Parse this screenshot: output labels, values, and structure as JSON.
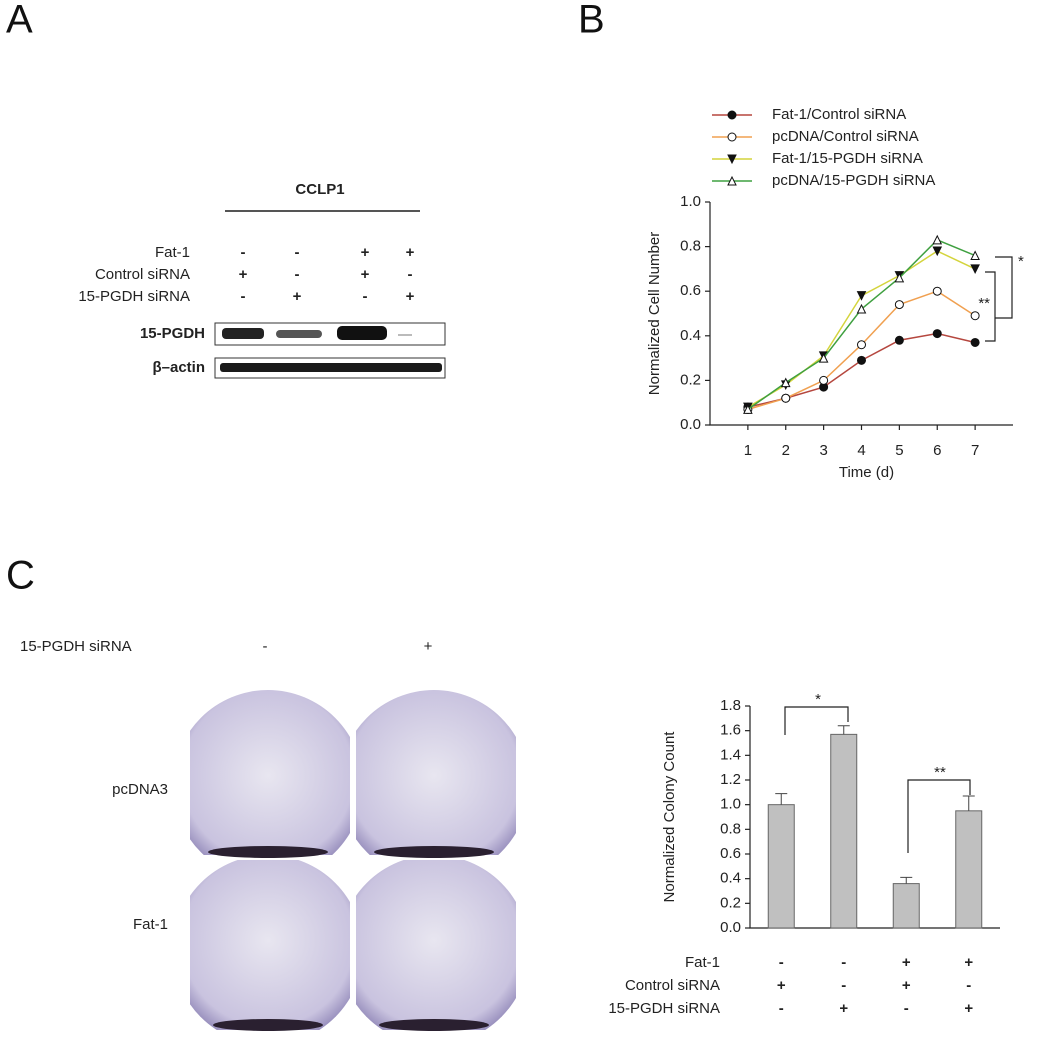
{
  "panels": {
    "a": "A",
    "b": "B",
    "c": "C"
  },
  "blot": {
    "title": "CCLP1",
    "conditions": [
      {
        "label": "Fat-1",
        "signs": [
          "-",
          "-",
          "+",
          "+"
        ]
      },
      {
        "label": "Control siRNA",
        "signs": [
          "+",
          "-",
          "+",
          "-"
        ]
      },
      {
        "label": "15-PGDH siRNA",
        "signs": [
          "-",
          "+",
          "-",
          "+"
        ]
      }
    ],
    "bands": [
      "15-PGDH",
      "β–actin"
    ]
  },
  "plates": {
    "header": "15-PGDH siRNA",
    "columns": [
      "-",
      "+"
    ],
    "rows": [
      "pcDNA3",
      "Fat-1"
    ]
  },
  "chart_data": [
    {
      "type": "line",
      "xlabel": "Time (d)",
      "ylabel": "Normalized Cell Number",
      "x": [
        1,
        2,
        3,
        4,
        5,
        6,
        7
      ],
      "xlim": [
        0,
        8
      ],
      "xticks": [
        1,
        2,
        3,
        4,
        5,
        6,
        7
      ],
      "ylim": [
        0,
        1
      ],
      "yticks": [
        {
          "value": 0,
          "label": "0.0"
        },
        0.2,
        0.4,
        0.6,
        0.8,
        {
          "value": 1,
          "label": "1.0"
        }
      ],
      "series": [
        {
          "name": "Fat-1/Control siRNA",
          "color": "#b5473f",
          "marker": "circle-filled",
          "values": [
            0.08,
            0.12,
            0.17,
            0.29,
            0.38,
            0.41,
            0.37
          ]
        },
        {
          "name": "pcDNA/Control siRNA",
          "color": "#f0a050",
          "marker": "circle-open",
          "values": [
            0.07,
            0.12,
            0.2,
            0.36,
            0.54,
            0.6,
            0.49
          ]
        },
        {
          "name": "Fat-1/15-PGDH siRNA",
          "color": "#d4d43c",
          "marker": "triangle-down",
          "values": [
            0.08,
            0.18,
            0.31,
            0.58,
            0.67,
            0.78,
            0.7
          ]
        },
        {
          "name": "pcDNA/15-PGDH siRNA",
          "color": "#3fa040",
          "marker": "triangle-open",
          "values": [
            0.07,
            0.19,
            0.3,
            0.52,
            0.66,
            0.83,
            0.76
          ]
        }
      ],
      "annotations": [
        "*",
        "**"
      ]
    },
    {
      "type": "bar",
      "ylabel": "Normalized Colony Count",
      "categories": [
        null,
        null,
        null,
        null
      ],
      "values": [
        1.0,
        1.57,
        0.36,
        0.95
      ],
      "errors": [
        0.09,
        0.07,
        0.05,
        0.12
      ],
      "color": "#c0c0c0",
      "ylim": [
        0,
        1.8
      ],
      "yticks": [
        {
          "value": 0,
          "label": "0.0"
        },
        0.2,
        0.4,
        0.6,
        0.8,
        {
          "value": 1,
          "label": "1.0"
        },
        1.2,
        1.4,
        1.6,
        1.8
      ],
      "conditions": [
        {
          "label": "Fat-1",
          "signs": [
            "-",
            "-",
            "+",
            "+"
          ]
        },
        {
          "label": "Control siRNA",
          "signs": [
            "+",
            "-",
            "+",
            "-"
          ]
        },
        {
          "label": "15-PGDH siRNA",
          "signs": [
            "-",
            "+",
            "-",
            "+"
          ]
        }
      ],
      "annotations": [
        "*",
        "**"
      ]
    }
  ]
}
